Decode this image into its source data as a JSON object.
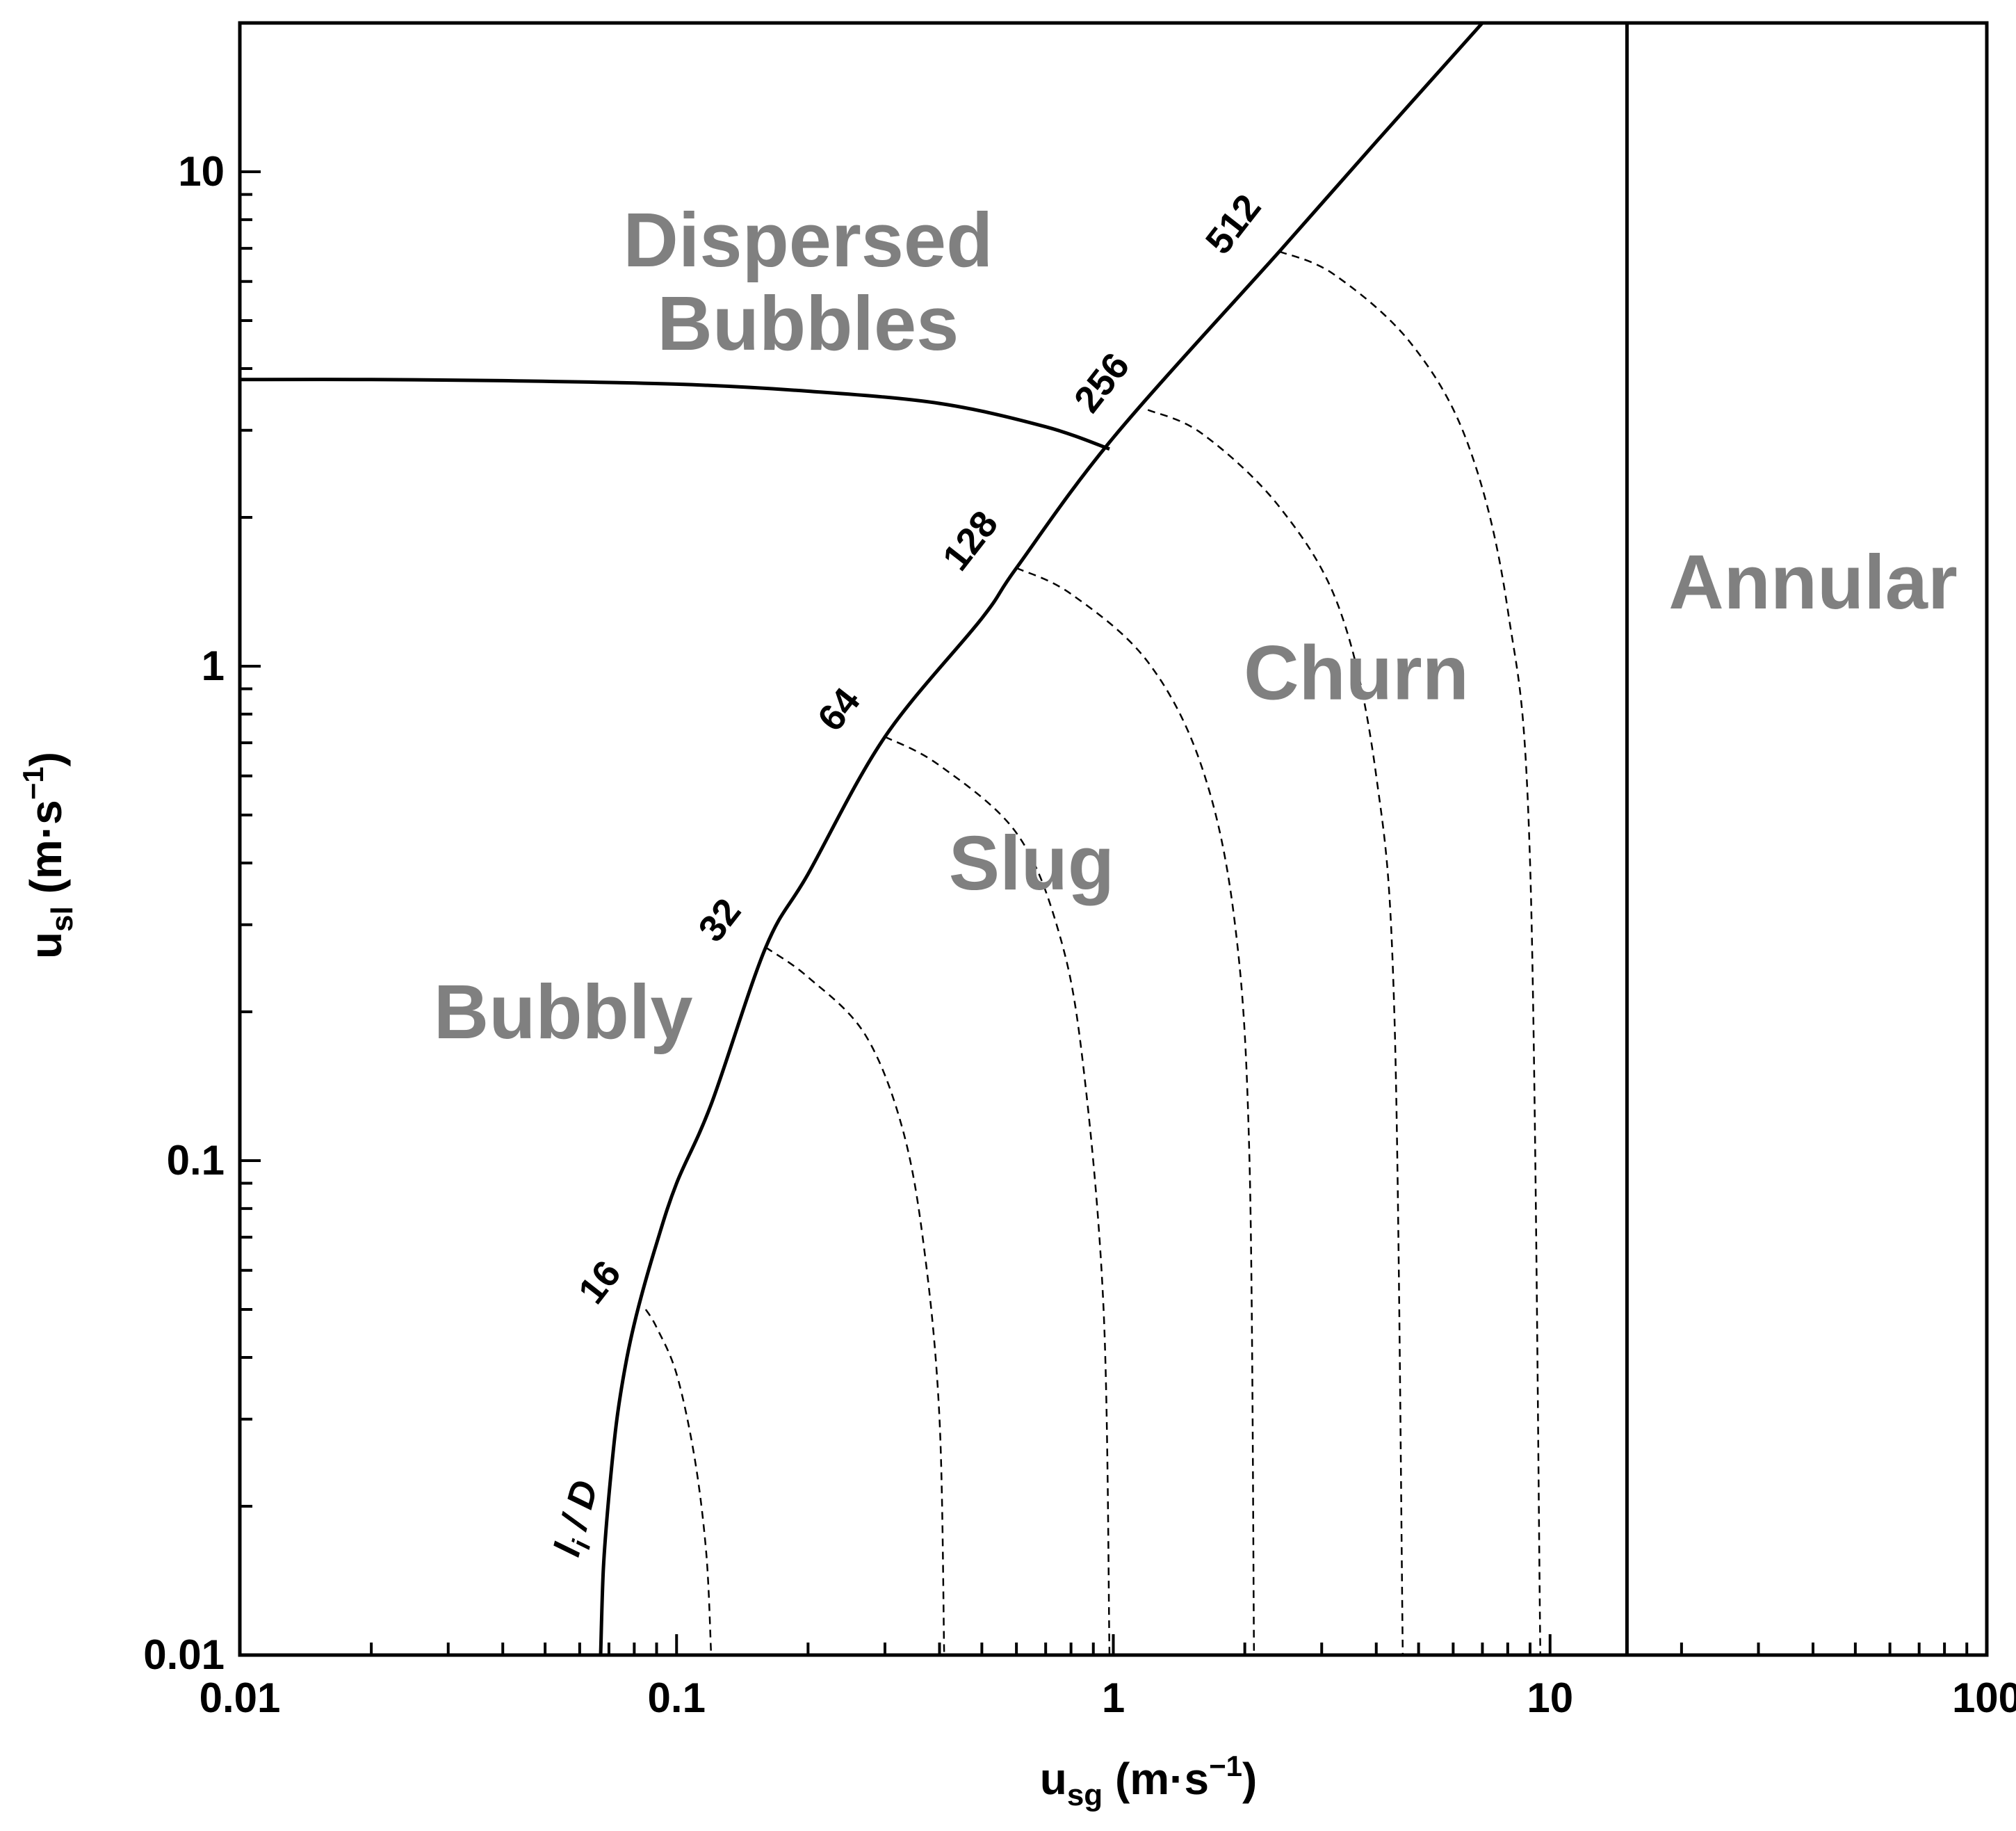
{
  "chart_data": {
    "type": "line",
    "xscale": "log",
    "yscale": "log",
    "xlim": [
      0.01,
      100
    ],
    "ylim": [
      0.01,
      20
    ],
    "x_ticks": [
      {
        "value": 0.01,
        "label": "0.01"
      },
      {
        "value": 0.1,
        "label": "0.1"
      },
      {
        "value": 1,
        "label": "1"
      },
      {
        "value": 10,
        "label": "10"
      },
      {
        "value": 100,
        "label": "100"
      }
    ],
    "y_ticks": [
      {
        "value": 0.01,
        "label": "0.01"
      },
      {
        "value": 0.1,
        "label": "0.1"
      },
      {
        "value": 1,
        "label": "1"
      },
      {
        "value": 10,
        "label": "10"
      }
    ],
    "xlabel": {
      "main": "u",
      "sub": "sg",
      "unit_open": " (m·s",
      "sup": "−1",
      "unit_close": ")"
    },
    "ylabel": {
      "main": "u",
      "sub": "sl",
      "unit_open": " (m·s",
      "sup": "−1",
      "unit_close": ")"
    },
    "regions": [
      {
        "name": "dispersed-bubbles",
        "lines": [
          "Dispersed",
          "Bubbles"
        ],
        "x": 0.2,
        "y": 6.0
      },
      {
        "name": "annular",
        "lines": [
          "Annular"
        ],
        "x": 40,
        "y": 1.48
      },
      {
        "name": "churn",
        "lines": [
          "Churn"
        ],
        "x": 3.6,
        "y": 0.97
      },
      {
        "name": "slug",
        "lines": [
          "Slug"
        ],
        "x": 0.65,
        "y": 0.4
      },
      {
        "name": "bubbly",
        "lines": [
          "Bubbly"
        ],
        "x": 0.055,
        "y": 0.2
      }
    ],
    "series": [
      {
        "name": "bubbly-to-slug boundary",
        "style": "solid",
        "points": [
          [
            0.067,
            0.01
          ],
          [
            0.068,
            0.015
          ],
          [
            0.07,
            0.021
          ],
          [
            0.073,
            0.03
          ],
          [
            0.077,
            0.04
          ],
          [
            0.082,
            0.051
          ],
          [
            0.09,
            0.068
          ],
          [
            0.1,
            0.09
          ],
          [
            0.12,
            0.13
          ],
          [
            0.16,
            0.27
          ],
          [
            0.2,
            0.38
          ],
          [
            0.3,
            0.72
          ],
          [
            0.5,
            1.25
          ],
          [
            0.6,
            1.58
          ],
          [
            1.0,
            2.9
          ],
          [
            2.4,
            6.9
          ],
          [
            4.0,
            11.5
          ],
          [
            7.0,
            20.0
          ]
        ]
      },
      {
        "name": "dispersed-bubbles boundary",
        "style": "solid",
        "points": [
          [
            0.01,
            3.8
          ],
          [
            0.02,
            3.8
          ],
          [
            0.04,
            3.78
          ],
          [
            0.1,
            3.72
          ],
          [
            0.2,
            3.6
          ],
          [
            0.4,
            3.4
          ],
          [
            0.7,
            3.05
          ],
          [
            0.98,
            2.75
          ]
        ]
      },
      {
        "name": "annular boundary",
        "style": "solid",
        "points": [
          [
            15.0,
            0.01
          ],
          [
            15.0,
            20.0
          ]
        ]
      }
    ],
    "entrance_length_curves": {
      "parameter_label": {
        "main": "l",
        "sub": "i",
        "rest": " / D"
      },
      "curves": [
        {
          "label": "16",
          "points": [
            [
              0.085,
              0.05
            ],
            [
              0.09,
              0.046
            ],
            [
              0.1,
              0.037
            ],
            [
              0.11,
              0.025
            ],
            [
              0.117,
              0.016
            ],
            [
              0.12,
              0.01
            ]
          ]
        },
        {
          "label": "32",
          "points": [
            [
              0.16,
              0.27
            ],
            [
              0.2,
              0.235
            ],
            [
              0.27,
              0.18
            ],
            [
              0.33,
              0.115
            ],
            [
              0.37,
              0.065
            ],
            [
              0.4,
              0.03
            ],
            [
              0.41,
              0.01
            ]
          ]
        },
        {
          "label": "64",
          "points": [
            [
              0.3,
              0.72
            ],
            [
              0.4,
              0.63
            ],
            [
              0.6,
              0.46
            ],
            [
              0.75,
              0.29
            ],
            [
              0.85,
              0.16
            ],
            [
              0.95,
              0.05
            ],
            [
              0.98,
              0.01
            ]
          ]
        },
        {
          "label": "128",
          "points": [
            [
              0.6,
              1.58
            ],
            [
              0.8,
              1.4
            ],
            [
              1.2,
              1.02
            ],
            [
              1.6,
              0.62
            ],
            [
              1.9,
              0.3
            ],
            [
              2.05,
              0.1
            ],
            [
              2.1,
              0.01
            ]
          ]
        },
        {
          "label": "256",
          "points": [
            [
              1.2,
              3.3
            ],
            [
              1.6,
              2.95
            ],
            [
              2.4,
              2.1
            ],
            [
              3.3,
              1.3
            ],
            [
              4.0,
              0.6
            ],
            [
              4.4,
              0.2
            ],
            [
              4.6,
              0.01
            ]
          ]
        },
        {
          "label": "512",
          "points": [
            [
              2.4,
              6.9
            ],
            [
              3.2,
              6.2
            ],
            [
              4.8,
              4.5
            ],
            [
              6.5,
              2.8
            ],
            [
              8.0,
              1.3
            ],
            [
              9.0,
              0.4
            ],
            [
              9.5,
              0.01
            ]
          ]
        }
      ]
    }
  }
}
